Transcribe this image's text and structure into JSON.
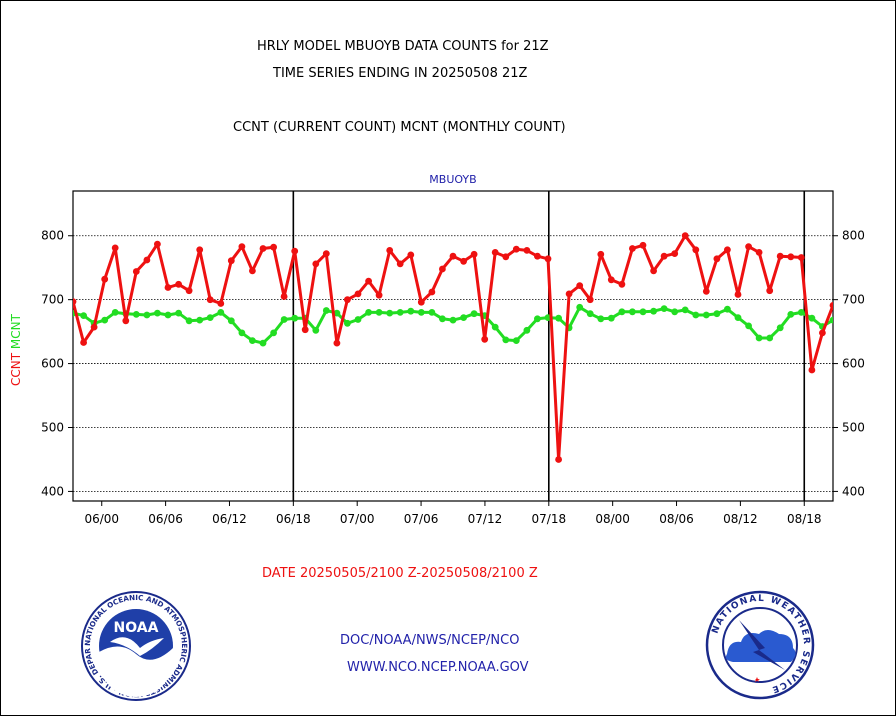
{
  "header": {
    "line1": "HRLY MODEL MBUOYB DATA COUNTS for 21Z",
    "line2": "TIME SERIES ENDING IN 20250508 21Z",
    "line3": "CCNT (CURRENT COUNT) MCNT (MONTHLY COUNT)"
  },
  "footer": {
    "date_range": "DATE 20250505/2100 Z-20250508/2100 Z",
    "org": "DOC/NOAA/NWS/NCEP/NCO",
    "url": "WWW.NCO.NCEP.NOAA.GOV"
  },
  "logos": {
    "left": {
      "text": "NOAA",
      "ring": "NATIONAL OCEANIC AND ATMOSPHERIC ADMINISTRATION · U.S. DEPARTMENT OF COMMERCE"
    },
    "right": {
      "ring": "NATIONAL WEATHER SERVICE"
    }
  },
  "chart_data": {
    "type": "line",
    "title": "MBUOYB",
    "ylabel_ccnt": "CCNT",
    "ylabel_mcnt": "MCNT",
    "ylim": [
      385,
      870
    ],
    "yticks": [
      400,
      500,
      600,
      700,
      800
    ],
    "xlim": [
      0,
      119
    ],
    "xticks": [
      {
        "x": 4.5,
        "label": "06/00"
      },
      {
        "x": 14.5,
        "label": "06/06"
      },
      {
        "x": 24.5,
        "label": "06/12"
      },
      {
        "x": 34.5,
        "label": "06/18"
      },
      {
        "x": 44.5,
        "label": "07/00"
      },
      {
        "x": 54.5,
        "label": "07/06"
      },
      {
        "x": 64.5,
        "label": "07/12"
      },
      {
        "x": 74.5,
        "label": "07/18"
      },
      {
        "x": 84.5,
        "label": "08/00"
      },
      {
        "x": 94.5,
        "label": "08/06"
      },
      {
        "x": 104.5,
        "label": "08/12"
      },
      {
        "x": 114.5,
        "label": "08/18"
      }
    ],
    "day_boundaries": [
      34.5,
      74.5,
      114.5
    ],
    "grid": true,
    "colors": {
      "ccnt": "#ee1111",
      "mcnt": "#22dd22",
      "title": "#2222aa"
    },
    "series": [
      {
        "name": "CCNT",
        "values": [
          697,
          633,
          657,
          732,
          781,
          667,
          744,
          762,
          787,
          719,
          724,
          714,
          778,
          700,
          694,
          761,
          783,
          745,
          780,
          782,
          705,
          776,
          653,
          756,
          772,
          632,
          700,
          709,
          729,
          707,
          777,
          756,
          770,
          696,
          712,
          748,
          768,
          760,
          771,
          638,
          774,
          767,
          779,
          777,
          768,
          764,
          450,
          709,
          722,
          700,
          771,
          731,
          724,
          780,
          785,
          745,
          768,
          772,
          800,
          778,
          713,
          764,
          778,
          708,
          783,
          774,
          714,
          768,
          767,
          766,
          590,
          648,
          691
        ]
      },
      {
        "name": "MCNT",
        "values": [
          679,
          675,
          663,
          668,
          680,
          678,
          677,
          676,
          679,
          676,
          679,
          667,
          668,
          672,
          680,
          667,
          648,
          636,
          632,
          648,
          669,
          671,
          671,
          652,
          683,
          679,
          663,
          669,
          680,
          680,
          679,
          680,
          682,
          680,
          680,
          670,
          668,
          672,
          678,
          675,
          657,
          637,
          636,
          652,
          670,
          672,
          671,
          656,
          688,
          678,
          670,
          671,
          681,
          681,
          681,
          682,
          686,
          681,
          684,
          676,
          676,
          678,
          685,
          672,
          659,
          640,
          640,
          656,
          677,
          680,
          671,
          658,
          668
        ]
      }
    ]
  }
}
